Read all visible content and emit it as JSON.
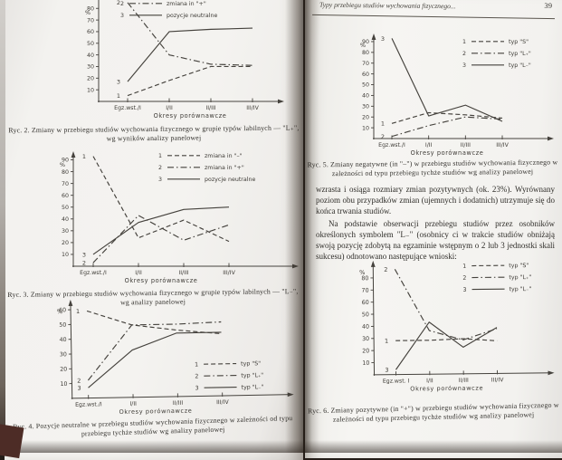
{
  "colors": {
    "ink": "#33312d",
    "chart_line": "#45423d",
    "page": "#f3f2ef"
  },
  "left_page": {
    "caption_ryc2": "Ryc. 2. Zmiany w przebiegu studiów wychowania fizycznego w grupie typów labilnych — \"L₊\", wg wyników analizy panelowej",
    "caption_ryc3": "Ryc. 3. Zmiany w przebiegu studiów wychowania fizycznego w grupie typów labilnych — \"L₋\", wg analizy panelowej",
    "caption_ryc4": "Ryc. 4. Pozycje neutralne w przebiegu studiów wychowania fizycznego w zależności od typu przebiegu tychże studiów wg analizy panelowej"
  },
  "right_page": {
    "running_header": "Typy przebiegu studiów wychowania fizycznego...",
    "page_number": "39",
    "paragraph_1": "wzrasta i osiąga rozmiary zmian pozytywnych (ok. 23%). Wyrównany poziom obu przypadków zmian (ujemnych i dodatnich) utrzymuje się do końca trwania studiów.",
    "paragraph_2": "Na podstawie obserwacji przebiegu studiów przez osobników określonych symbolem \"L₋\" (osobnicy ci w trakcie studiów obniżają swoją pozycję zdobytą na egzaminie wstępnym o 2 lub 3 jednostki skali sukcesu) odnotowano następujące wnioski:",
    "caption_ryc5": "Ryc. 5. Zmiany negatywne (in \"–\") w przebiegu studiów wychowania fizycznego w zależności od typu przebiegu tychże studiów wg analizy panelowej",
    "caption_ryc6": "Ryc. 6. Zmiany pozytywne (in \"+\") w przebiegu studiów wychowania fizycznego w zależności od typu przebiegu tychże studiów wg analizy panelowej"
  },
  "chart_data": [
    {
      "id": "ryc2",
      "type": "line",
      "title": "Zmiany w przebiegu studiów wychowania fizycznego w grupie typów labilnych — \"L₊\", wg wyników analizy panelowej",
      "categories": [
        "Egz.wst./I",
        "I/II",
        "II/III",
        "III/IV"
      ],
      "xlabel": "Okresy porównawcze",
      "ylabel": "%",
      "ylim": [
        0,
        95
      ],
      "yticks": [
        10,
        20,
        30,
        40,
        50,
        60,
        70,
        80,
        90
      ],
      "grid": false,
      "legend_position": "top-right",
      "series": [
        {
          "num": "1",
          "name": "zmiana in \"–\"",
          "style": "dashed",
          "values": [
            5,
            18,
            30,
            30
          ]
        },
        {
          "num": "2",
          "name": "zmiana in \"+\"",
          "style": "dashdot",
          "values": [
            85,
            40,
            32,
            31
          ]
        },
        {
          "num": "3",
          "name": "pozycje neutralne",
          "style": "solid",
          "values": [
            17,
            60,
            62,
            63
          ]
        }
      ]
    },
    {
      "id": "ryc3",
      "type": "line",
      "title": "Zmiany w przebiegu studiów wychowania fizycznego w grupie typów labilnych — \"L₋\", wg analizy panelowej",
      "categories": [
        "Egz.wst./I",
        "I/II",
        "II/III",
        "III/IV"
      ],
      "xlabel": "Okresy porównawcze",
      "ylabel": "%",
      "ylim": [
        0,
        95
      ],
      "yticks": [
        10,
        20,
        30,
        40,
        50,
        60,
        70,
        80,
        90
      ],
      "grid": false,
      "legend_position": "top-right",
      "series": [
        {
          "num": "1",
          "name": "zmiana in \"–\"",
          "style": "dashed",
          "values": [
            93,
            24,
            39,
            21
          ]
        },
        {
          "num": "2",
          "name": "zmiana in \"+\"",
          "style": "dashdot",
          "values": [
            3,
            43,
            22,
            35
          ]
        },
        {
          "num": "3",
          "name": "pozycje neutralne",
          "style": "solid",
          "values": [
            10,
            37,
            48,
            50
          ]
        }
      ]
    },
    {
      "id": "ryc4",
      "type": "line",
      "title": "Pozycje neutralne w przebiegu studiów wychowania fizycznego w zależności od typu przebiegu tychże studiów wg analizy panelowej",
      "categories": [
        "Egz.wst./I",
        "I/II",
        "II/III",
        "III/IV"
      ],
      "xlabel": "Okresy porównawcze",
      "ylabel": "%",
      "ylim": [
        0,
        65
      ],
      "yticks": [
        10,
        20,
        30,
        40,
        50,
        60
      ],
      "grid": false,
      "legend_position": "mid-right",
      "series": [
        {
          "num": "1",
          "name": "typ \"S\"",
          "style": "dashed",
          "values": [
            59,
            49,
            45,
            42
          ]
        },
        {
          "num": "2",
          "name": "typ \"L₊\"",
          "style": "dashdot",
          "values": [
            12,
            49,
            49,
            50
          ]
        },
        {
          "num": "3",
          "name": "typ \"L₋\"",
          "style": "solid",
          "values": [
            7,
            32,
            43,
            43
          ]
        }
      ]
    },
    {
      "id": "ryc5",
      "type": "line",
      "title": "Zmiany negatywne (in \"–\") w przebiegu studiów wychowania fizycznego w zależności od typu przebiegu tychże studiów wg analizy panelowej",
      "categories": [
        "Egz.wst./I",
        "I/II",
        "II/III",
        "III/IV"
      ],
      "xlabel": "Okresy porównawcze",
      "ylabel": "%",
      "ylim": [
        0,
        95
      ],
      "yticks": [
        10,
        20,
        30,
        40,
        50,
        60,
        70,
        80,
        90
      ],
      "grid": false,
      "legend_position": "top-right",
      "series": [
        {
          "num": "1",
          "name": "typ \"S\"",
          "style": "dashed",
          "values": [
            14,
            24,
            22,
            19
          ]
        },
        {
          "num": "2",
          "name": "typ \"L₊\"",
          "style": "dashdot",
          "values": [
            2,
            12,
            20,
            18
          ]
        },
        {
          "num": "3",
          "name": "typ \"L₋\"",
          "style": "solid",
          "values": [
            93,
            21,
            31,
            16
          ]
        }
      ]
    },
    {
      "id": "ryc6",
      "type": "line",
      "title": "Zmiany pozytywne (in \"+\") w przebiegu studiów wychowania fizycznego w zależności od typu przebiegu tychże studiów wg analizy panelowej",
      "categories": [
        "Egz.wst. I",
        "I/II",
        "II/III",
        "III/IV"
      ],
      "xlabel": "Okresy porównawcze",
      "ylabel": "%",
      "ylim": [
        0,
        92
      ],
      "yticks": [
        10,
        20,
        30,
        40,
        50,
        60,
        70,
        80
      ],
      "grid": false,
      "legend_position": "top-right",
      "series": [
        {
          "num": "1",
          "name": "typ \"S\"",
          "style": "dashed",
          "values": [
            28,
            28,
            29,
            27
          ]
        },
        {
          "num": "2",
          "name": "typ \"L₊\"",
          "style": "dashdot",
          "values": [
            87,
            36,
            28,
            37
          ]
        },
        {
          "num": "3",
          "name": "typ \"L₋\"",
          "style": "solid",
          "values": [
            4,
            43,
            22,
            38
          ]
        }
      ]
    }
  ]
}
